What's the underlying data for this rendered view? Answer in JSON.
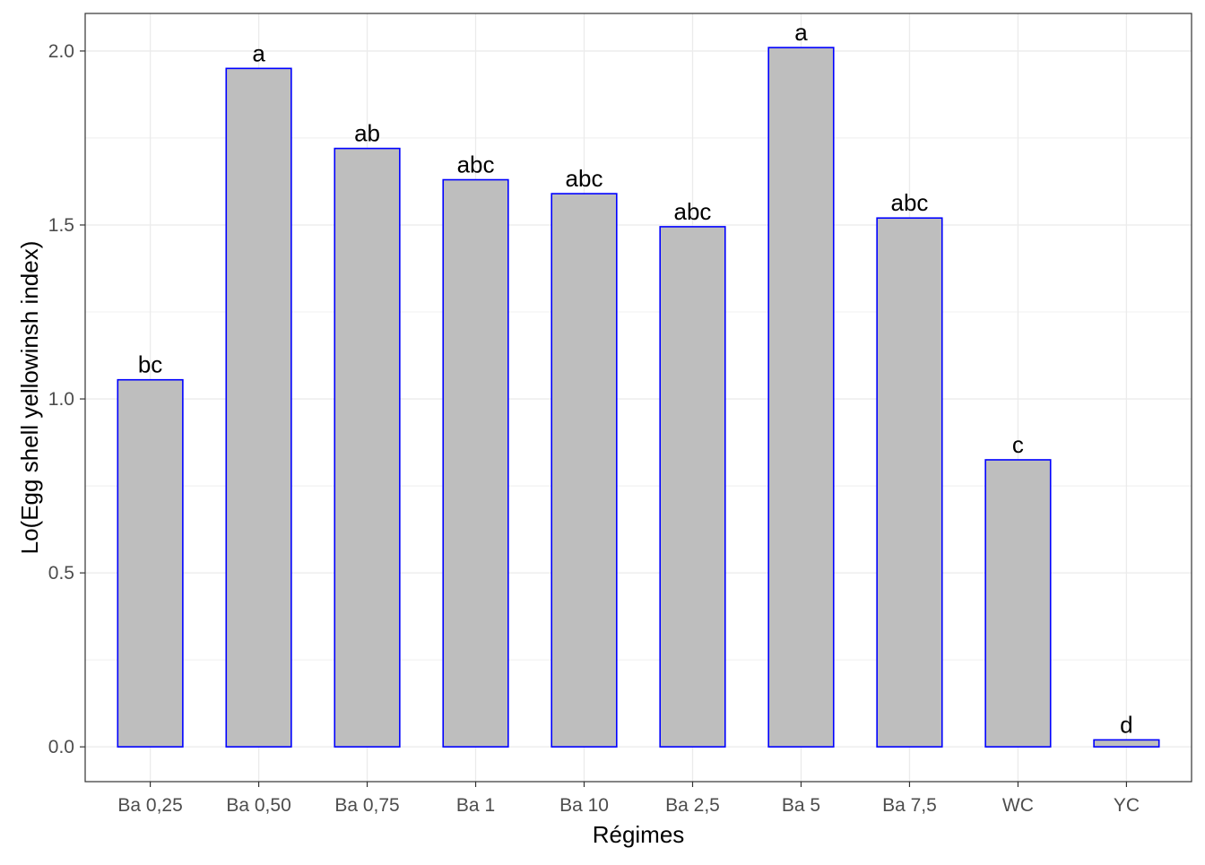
{
  "chart_data": {
    "type": "bar",
    "title": "",
    "xlabel": "Régimes",
    "ylabel": "Lo(Egg shell yellowinsh index)",
    "categories": [
      "Ba 0,25",
      "Ba 0,50",
      "Ba 0,75",
      "Ba 1",
      "Ba 10",
      "Ba 2,5",
      "Ba 5",
      "Ba 7,5",
      "WC",
      "YC"
    ],
    "values": [
      1.055,
      1.95,
      1.72,
      1.63,
      1.59,
      1.495,
      2.01,
      1.52,
      0.825,
      0.02
    ],
    "bar_labels": [
      "bc",
      "a",
      "ab",
      "abc",
      "abc",
      "abc",
      "a",
      "abc",
      "c",
      "d"
    ],
    "ylim": [
      -0.1,
      2.108
    ],
    "yticks": [
      0.0,
      0.5,
      1.0,
      1.5,
      2.0
    ],
    "ytick_labels": [
      "0.0",
      "0.5",
      "1.0",
      "1.5",
      "2.0"
    ],
    "grid": true,
    "colors": {
      "bar_fill": "#bebebe",
      "bar_stroke": "#0000ff",
      "grid_major": "#ebebeb",
      "panel_border": "#333333",
      "tick_text": "#4d4d4d"
    }
  }
}
